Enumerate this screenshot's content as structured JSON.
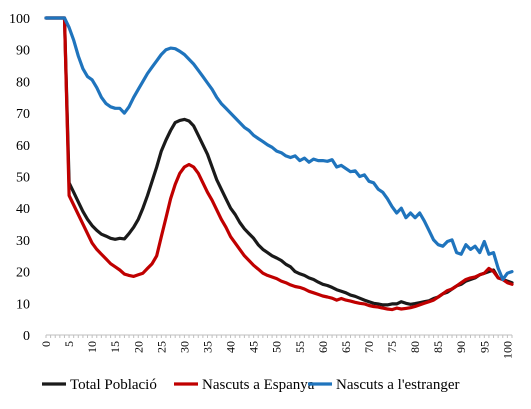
{
  "chart_data": {
    "type": "line",
    "title": "",
    "xlabel": "",
    "ylabel": "",
    "xlim": [
      0,
      101
    ],
    "ylim": [
      0,
      100
    ],
    "y_ticks": [
      "0",
      "10",
      "20",
      "30",
      "40",
      "50",
      "60",
      "70",
      "80",
      "90",
      "100"
    ],
    "y_tick_values": [
      0,
      10,
      20,
      30,
      40,
      50,
      60,
      70,
      80,
      90,
      100
    ],
    "x_ticks": [
      "0",
      "5",
      "10",
      "15",
      "20",
      "25",
      "30",
      "35",
      "40",
      "45",
      "50",
      "55",
      "60",
      "65",
      "70",
      "75",
      "80",
      "85",
      "90",
      "95",
      "100"
    ],
    "x_tick_values": [
      0,
      5,
      10,
      15,
      20,
      25,
      30,
      35,
      40,
      45,
      50,
      55,
      60,
      65,
      70,
      75,
      80,
      85,
      90,
      95,
      100
    ],
    "grid": false,
    "legend_position": "bottom",
    "series": [
      {
        "name": "Total Població",
        "color": "#1a1a1a",
        "x": [
          0,
          1,
          2,
          3,
          4,
          5,
          6,
          7,
          8,
          9,
          10,
          11,
          12,
          13,
          14,
          15,
          16,
          17,
          18,
          19,
          20,
          21,
          22,
          23,
          24,
          25,
          26,
          27,
          28,
          29,
          30,
          31,
          32,
          33,
          34,
          35,
          36,
          37,
          38,
          39,
          40,
          41,
          42,
          43,
          44,
          45,
          46,
          47,
          48,
          49,
          50,
          51,
          52,
          53,
          54,
          55,
          56,
          57,
          58,
          59,
          60,
          61,
          62,
          63,
          64,
          65,
          66,
          67,
          68,
          69,
          70,
          71,
          72,
          73,
          74,
          75,
          76,
          77,
          78,
          79,
          80,
          81,
          82,
          83,
          84,
          85,
          86,
          87,
          88,
          89,
          90,
          91,
          92,
          93,
          94,
          95,
          96,
          97,
          98,
          99,
          100,
          101
        ],
        "y": [
          100,
          100,
          100,
          100,
          100,
          48,
          45,
          42,
          39,
          36.5,
          34.5,
          33,
          31.8,
          31.2,
          30.5,
          30.2,
          30.5,
          30.3,
          32,
          34,
          36.5,
          40,
          44,
          48.5,
          53,
          58,
          61.5,
          64.5,
          67,
          67.7,
          68,
          67.5,
          66,
          63,
          60,
          57,
          53,
          49,
          46,
          43,
          40,
          38,
          35.5,
          33.5,
          32,
          30.5,
          28.5,
          27,
          26,
          25,
          24.3,
          23.5,
          22.3,
          21.5,
          20,
          19.3,
          18.8,
          18,
          17.5,
          16.7,
          16,
          15.6,
          15,
          14.3,
          13.8,
          13.3,
          12.6,
          12.2,
          11.6,
          11,
          10.5,
          10,
          9.8,
          9.5,
          9.5,
          9.8,
          9.8,
          10.5,
          10,
          9.7,
          9.9,
          10.2,
          10.5,
          10.8,
          11.5,
          12,
          13,
          13.5,
          14.5,
          15.5,
          16,
          17,
          17.5,
          18,
          19,
          19.5,
          20,
          20.5,
          18,
          17.5,
          17,
          16.5
        ]
      },
      {
        "name": "Nascuts a Espanya",
        "color": "#c00000",
        "x": [
          0,
          1,
          2,
          3,
          4,
          5,
          6,
          7,
          8,
          9,
          10,
          11,
          12,
          13,
          14,
          15,
          16,
          17,
          18,
          19,
          20,
          21,
          22,
          23,
          24,
          25,
          26,
          27,
          28,
          29,
          30,
          31,
          32,
          33,
          34,
          35,
          36,
          37,
          38,
          39,
          40,
          41,
          42,
          43,
          44,
          45,
          46,
          47,
          48,
          49,
          50,
          51,
          52,
          53,
          54,
          55,
          56,
          57,
          58,
          59,
          60,
          61,
          62,
          63,
          64,
          65,
          66,
          67,
          68,
          69,
          70,
          71,
          72,
          73,
          74,
          75,
          76,
          77,
          78,
          79,
          80,
          81,
          82,
          83,
          84,
          85,
          86,
          87,
          88,
          89,
          90,
          91,
          92,
          93,
          94,
          95,
          96,
          97,
          98,
          99,
          100,
          101
        ],
        "y": [
          100,
          100,
          100,
          100,
          100,
          44,
          41,
          38,
          35,
          32,
          29,
          27,
          25.5,
          24,
          22.5,
          21.5,
          20.5,
          19.2,
          18.8,
          18.5,
          19,
          19.5,
          21,
          22.5,
          25,
          31,
          37,
          43,
          47.5,
          51,
          53,
          53.8,
          53,
          51,
          48,
          45,
          42.5,
          39.5,
          36.5,
          34,
          31,
          29,
          27,
          25,
          23.5,
          22,
          20.8,
          19.5,
          18.8,
          18.3,
          17.8,
          17,
          16.5,
          15.8,
          15.3,
          15,
          14.5,
          13.8,
          13.3,
          12.8,
          12.3,
          12,
          11.6,
          11,
          11.5,
          11,
          10.7,
          10.3,
          10,
          9.8,
          9.3,
          9,
          8.8,
          8.5,
          8.2,
          8,
          8.5,
          8.2,
          8.4,
          8.6,
          9,
          9.5,
          10,
          10.5,
          11,
          12,
          13,
          14,
          14.5,
          15.5,
          16.5,
          17.5,
          18,
          18.3,
          19,
          19.5,
          21,
          20,
          18,
          17.5,
          16.5,
          16
        ]
      },
      {
        "name": "Nascuts a l'estranger",
        "color": "#1f74bd",
        "x": [
          0,
          1,
          2,
          3,
          4,
          5,
          6,
          7,
          8,
          9,
          10,
          11,
          12,
          13,
          14,
          15,
          16,
          17,
          18,
          19,
          20,
          21,
          22,
          23,
          24,
          25,
          26,
          27,
          28,
          29,
          30,
          31,
          32,
          33,
          34,
          35,
          36,
          37,
          38,
          39,
          40,
          41,
          42,
          43,
          44,
          45,
          46,
          47,
          48,
          49,
          50,
          51,
          52,
          53,
          54,
          55,
          56,
          57,
          58,
          59,
          60,
          61,
          62,
          63,
          64,
          65,
          66,
          67,
          68,
          69,
          70,
          71,
          72,
          73,
          74,
          75,
          76,
          77,
          78,
          79,
          80,
          81,
          82,
          83,
          84,
          85,
          86,
          87,
          88,
          89,
          90,
          91,
          92,
          93,
          94,
          95,
          96,
          97,
          98,
          99,
          100,
          101
        ],
        "y": [
          100,
          100,
          100,
          100,
          100,
          97,
          93,
          88,
          84,
          81.5,
          80.5,
          78,
          75,
          73,
          72,
          71.5,
          71.5,
          70,
          72,
          75,
          77.5,
          80,
          82.5,
          84.5,
          86.5,
          88.5,
          90,
          90.5,
          90.3,
          89.5,
          88.5,
          87,
          85.5,
          83.5,
          81.5,
          79.5,
          77.5,
          75,
          73,
          71.5,
          70,
          68.5,
          67,
          65.5,
          64.5,
          63,
          62,
          61,
          60,
          59.2,
          58,
          57.5,
          56.5,
          56,
          56.5,
          55,
          55.8,
          54.5,
          55.5,
          55,
          55,
          54.8,
          55.3,
          53,
          53.5,
          52.5,
          51.5,
          51.8,
          50,
          50.5,
          48.5,
          48,
          46,
          45,
          43,
          40.5,
          38.5,
          40,
          37,
          38.5,
          37,
          38.5,
          36,
          33,
          30,
          28.5,
          28,
          29.5,
          30,
          26,
          25.5,
          28.5,
          27,
          28,
          26,
          29.5,
          25.5,
          26,
          21,
          17.5,
          19.5,
          20
        ]
      }
    ]
  }
}
